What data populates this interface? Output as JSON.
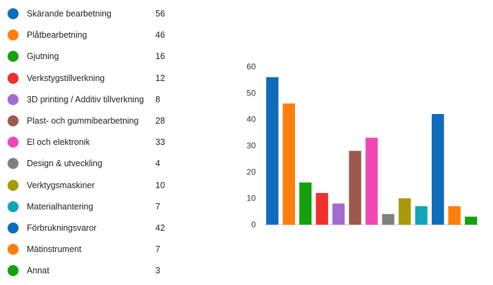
{
  "chart_data": {
    "type": "bar",
    "categories": [
      "Skärande bearbetning",
      "Plåtbearbetning",
      "Gjutning",
      "Verkstygstillverkning",
      "3D printing / Additiv tillverkning",
      "Plast- och gummibearbetning",
      "El och elektronik",
      "Design & utveckling",
      "Verktygsmaskiner",
      "Materialhantering",
      "Förbrukningsvaror",
      "Mätinstrument",
      "Annat"
    ],
    "values": [
      56,
      46,
      16,
      12,
      8,
      28,
      33,
      4,
      10,
      7,
      42,
      7,
      3
    ],
    "colors": [
      "#0f6cbd",
      "#ff7f0e",
      "#13a10e",
      "#f03030",
      "#a56ad0",
      "#9b5a4e",
      "#ef48b5",
      "#808080",
      "#a89a0a",
      "#12a5b8",
      "#0f6cbd",
      "#ff7f0e",
      "#13a10e"
    ],
    "ylim": [
      0,
      60
    ],
    "yticks": [
      "0",
      "10",
      "20",
      "30",
      "40",
      "50",
      "60"
    ],
    "grid": false,
    "legend_placement": "left"
  }
}
